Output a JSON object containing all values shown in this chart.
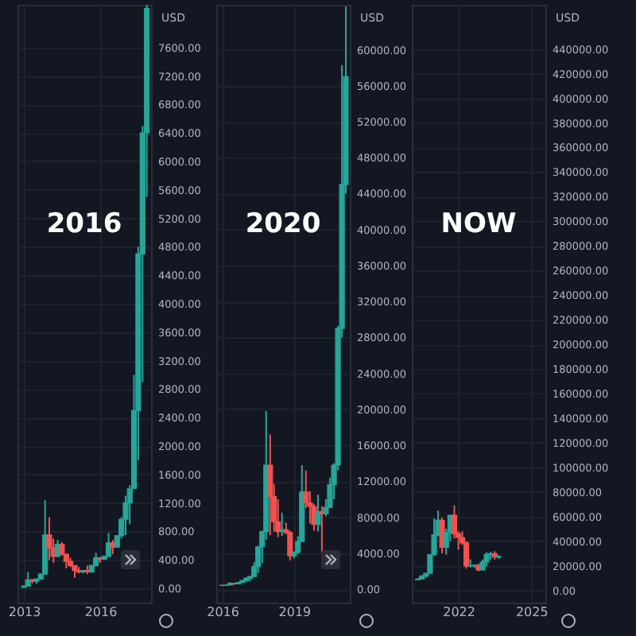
{
  "chart_data": [
    {
      "type": "candlestick",
      "title": "2016",
      "ylabel": "USD",
      "grid": true,
      "x": [
        "2013-01",
        "2013-03",
        "2013-05",
        "2013-07",
        "2013-09",
        "2013-11",
        "2014-01",
        "2014-03",
        "2014-05",
        "2014-07",
        "2014-09",
        "2014-11",
        "2015-01",
        "2015-03",
        "2015-05",
        "2015-07",
        "2015-09",
        "2015-11",
        "2016-01",
        "2016-03",
        "2016-05",
        "2016-07",
        "2016-09",
        "2016-11",
        "2017-01",
        "2017-03",
        "2017-05",
        "2017-07",
        "2017-09",
        "2017-11"
      ],
      "ohlc": [
        [
          13,
          35,
          13,
          33
        ],
        [
          33,
          230,
          30,
          120
        ],
        [
          120,
          130,
          70,
          100
        ],
        [
          100,
          140,
          65,
          130
        ],
        [
          130,
          210,
          120,
          200
        ],
        [
          200,
          1240,
          190,
          750
        ],
        [
          750,
          1000,
          400,
          570
        ],
        [
          570,
          700,
          360,
          450
        ],
        [
          450,
          680,
          440,
          620
        ],
        [
          620,
          650,
          460,
          480
        ],
        [
          480,
          490,
          280,
          380
        ],
        [
          380,
          430,
          300,
          320
        ],
        [
          320,
          320,
          150,
          250
        ],
        [
          250,
          300,
          210,
          230
        ],
        [
          230,
          260,
          210,
          250
        ],
        [
          250,
          320,
          200,
          230
        ],
        [
          230,
          330,
          220,
          320
        ],
        [
          320,
          500,
          310,
          430
        ],
        [
          430,
          440,
          360,
          410
        ],
        [
          410,
          460,
          400,
          450
        ],
        [
          450,
          780,
          440,
          640
        ],
        [
          640,
          680,
          480,
          580
        ],
        [
          580,
          750,
          580,
          740
        ],
        [
          740,
          1000,
          700,
          970
        ],
        [
          970,
          1300,
          750,
          1200
        ],
        [
          1200,
          1450,
          900,
          1400
        ],
        [
          1400,
          3000,
          1400,
          2500
        ],
        [
          2500,
          4800,
          1800,
          4700
        ],
        [
          4700,
          6500,
          2900,
          6400
        ],
        [
          6400,
          8200,
          5500,
          8150
        ]
      ],
      "colors": [
        "#26a69a",
        "#26a69a",
        "#ef5350",
        "#26a69a",
        "#26a69a",
        "#26a69a",
        "#ef5350",
        "#ef5350",
        "#26a69a",
        "#ef5350",
        "#ef5350",
        "#ef5350",
        "#ef5350",
        "#ef5350",
        "#26a69a",
        "#ef5350",
        "#26a69a",
        "#26a69a",
        "#ef5350",
        "#26a69a",
        "#26a69a",
        "#ef5350",
        "#26a69a",
        "#26a69a",
        "#26a69a",
        "#26a69a",
        "#26a69a",
        "#26a69a",
        "#26a69a",
        "#26a69a"
      ],
      "xlim": [
        "2012-10",
        "2018-01"
      ],
      "xticks": [
        "2013",
        "2016"
      ],
      "ylim": [
        -200,
        8200
      ],
      "yticks": [
        {
          "value": 0,
          "label": "0.00"
        },
        {
          "value": 400,
          "label": "400.00"
        },
        {
          "value": 800,
          "label": "800.00"
        },
        {
          "value": 1200,
          "label": "1200.00"
        },
        {
          "value": 1600,
          "label": "1600.00"
        },
        {
          "value": 2000,
          "label": "2000.00"
        },
        {
          "value": 2400,
          "label": "2400.00"
        },
        {
          "value": 2800,
          "label": "2800.00"
        },
        {
          "value": 3200,
          "label": "3200.00"
        },
        {
          "value": 3600,
          "label": "3600.00"
        },
        {
          "value": 4000,
          "label": "4000.00"
        },
        {
          "value": 4400,
          "label": "4400.00"
        },
        {
          "value": 4800,
          "label": "4800.00"
        },
        {
          "value": 5200,
          "label": "5200.00"
        },
        {
          "value": 5600,
          "label": "5600.00"
        },
        {
          "value": 6000,
          "label": "6000.00"
        },
        {
          "value": 6400,
          "label": "6400.00"
        },
        {
          "value": 6800,
          "label": "6800.00"
        },
        {
          "value": 7200,
          "label": "7200.00"
        },
        {
          "value": 7600,
          "label": "7600.00"
        }
      ]
    },
    {
      "type": "candlestick",
      "title": "2020",
      "ylabel": "USD",
      "grid": true,
      "x": [
        "2016-01",
        "2016-03",
        "2016-05",
        "2016-07",
        "2016-09",
        "2016-11",
        "2017-01",
        "2017-03",
        "2017-05",
        "2017-07",
        "2017-09",
        "2017-11",
        "2018-01",
        "2018-03",
        "2018-05",
        "2018-07",
        "2018-09",
        "2018-11",
        "2019-01",
        "2019-03",
        "2019-05",
        "2019-07",
        "2019-09",
        "2019-11",
        "2020-01",
        "2020-03",
        "2020-05",
        "2020-07",
        "2020-09",
        "2020-11",
        "2021-01",
        "2021-03"
      ],
      "ohlc": [
        [
          430,
          440,
          360,
          410
        ],
        [
          410,
          460,
          400,
          450
        ],
        [
          450,
          780,
          440,
          640
        ],
        [
          640,
          680,
          480,
          580
        ],
        [
          580,
          750,
          580,
          740
        ],
        [
          740,
          1000,
          700,
          970
        ],
        [
          970,
          1300,
          750,
          1200
        ],
        [
          1200,
          1450,
          900,
          1400
        ],
        [
          1400,
          3000,
          1400,
          2500
        ],
        [
          2500,
          4800,
          1800,
          4700
        ],
        [
          4700,
          6500,
          2900,
          6400
        ],
        [
          6400,
          19800,
          5500,
          13800
        ],
        [
          13800,
          17200,
          6000,
          10300
        ],
        [
          10300,
          11700,
          6400,
          7500
        ],
        [
          7500,
          10000,
          5800,
          6400
        ],
        [
          6400,
          8500,
          5900,
          6600
        ],
        [
          6600,
          7400,
          6100,
          6300
        ],
        [
          6300,
          6500,
          3200,
          3700
        ],
        [
          3700,
          4200,
          3400,
          4100
        ],
        [
          4100,
          5900,
          3900,
          5300
        ],
        [
          5300,
          13800,
          5300,
          10800
        ],
        [
          10800,
          13200,
          9000,
          9600
        ],
        [
          9600,
          10900,
          7300,
          9200
        ],
        [
          9200,
          9500,
          6500,
          7200
        ],
        [
          7200,
          10500,
          6400,
          8600
        ],
        [
          8600,
          9200,
          3800,
          8400
        ],
        [
          8400,
          10000,
          8100,
          9100
        ],
        [
          9100,
          12400,
          9000,
          11600
        ],
        [
          11600,
          14000,
          10000,
          13800
        ],
        [
          13800,
          29300,
          13200,
          29000
        ],
        [
          29000,
          58300,
          28000,
          45000
        ],
        [
          45000,
          64800,
          44000,
          57000
        ]
      ],
      "colors": [
        "#ef5350",
        "#26a69a",
        "#26a69a",
        "#ef5350",
        "#26a69a",
        "#26a69a",
        "#26a69a",
        "#26a69a",
        "#26a69a",
        "#26a69a",
        "#26a69a",
        "#26a69a",
        "#ef5350",
        "#ef5350",
        "#ef5350",
        "#26a69a",
        "#ef5350",
        "#ef5350",
        "#26a69a",
        "#26a69a",
        "#26a69a",
        "#ef5350",
        "#ef5350",
        "#ef5350",
        "#26a69a",
        "#ef5350",
        "#26a69a",
        "#26a69a",
        "#26a69a",
        "#26a69a",
        "#26a69a",
        "#26a69a"
      ],
      "xlim": [
        "2015-10",
        "2021-05"
      ],
      "xticks": [
        "2016",
        "2019"
      ],
      "ylim": [
        -1500,
        65000
      ],
      "yticks": [
        {
          "value": 0,
          "label": "0.00"
        },
        {
          "value": 4000,
          "label": "4000.00"
        },
        {
          "value": 8000,
          "label": "8000.00"
        },
        {
          "value": 12000,
          "label": "12000.00"
        },
        {
          "value": 16000,
          "label": "16000.00"
        },
        {
          "value": 20000,
          "label": "20000.00"
        },
        {
          "value": 24000,
          "label": "24000.00"
        },
        {
          "value": 28000,
          "label": "28000.00"
        },
        {
          "value": 32000,
          "label": "32000.00"
        },
        {
          "value": 36000,
          "label": "36000.00"
        },
        {
          "value": 40000,
          "label": "40000.00"
        },
        {
          "value": 44000,
          "label": "44000.00"
        },
        {
          "value": 48000,
          "label": "48000.00"
        },
        {
          "value": 52000,
          "label": "52000.00"
        },
        {
          "value": 56000,
          "label": "56000.00"
        },
        {
          "value": 60000,
          "label": "60000.00"
        }
      ]
    },
    {
      "type": "candlestick",
      "title": "NOW",
      "ylabel": "USD",
      "grid": true,
      "x": [
        "2020-05",
        "2020-07",
        "2020-09",
        "2020-11",
        "2021-01",
        "2021-03",
        "2021-05",
        "2021-07",
        "2021-09",
        "2021-11",
        "2022-01",
        "2022-03",
        "2022-05",
        "2022-07",
        "2022-09",
        "2022-11",
        "2023-01",
        "2023-03",
        "2023-05",
        "2023-07",
        "2023-09"
      ],
      "ohlc": [
        [
          8600,
          10000,
          8100,
          9100
        ],
        [
          9100,
          12400,
          9000,
          11600
        ],
        [
          11600,
          14000,
          10000,
          13800
        ],
        [
          13800,
          29300,
          13200,
          29000
        ],
        [
          29000,
          58300,
          28000,
          45000
        ],
        [
          45000,
          64800,
          44000,
          57000
        ],
        [
          57000,
          59000,
          30000,
          35000
        ],
        [
          35000,
          50000,
          29000,
          47000
        ],
        [
          47000,
          61000,
          40000,
          61000
        ],
        [
          61000,
          69000,
          42000,
          46000
        ],
        [
          46000,
          48000,
          33000,
          43000
        ],
        [
          43000,
          48000,
          37000,
          38500
        ],
        [
          38500,
          40000,
          17600,
          19800
        ],
        [
          19800,
          25200,
          18500,
          20000
        ],
        [
          20000,
          21000,
          18200,
          20500
        ],
        [
          20500,
          21500,
          15500,
          16500
        ],
        [
          16500,
          25000,
          16500,
          23100
        ],
        [
          23100,
          31000,
          19500,
          29200
        ],
        [
          29200,
          31400,
          24800,
          29800
        ],
        [
          29800,
          31800,
          25000,
          27000
        ],
        [
          27000,
          28500,
          25500,
          27500
        ]
      ],
      "colors": [
        "#26a69a",
        "#26a69a",
        "#26a69a",
        "#26a69a",
        "#26a69a",
        "#26a69a",
        "#ef5350",
        "#26a69a",
        "#26a69a",
        "#ef5350",
        "#ef5350",
        "#ef5350",
        "#ef5350",
        "#26a69a",
        "#26a69a",
        "#ef5350",
        "#26a69a",
        "#26a69a",
        "#26a69a",
        "#ef5350",
        "#26a69a"
      ],
      "xlim": [
        "2020-02",
        "2025-08"
      ],
      "xticks": [
        "2022",
        "2025"
      ],
      "ylim": [
        -10000,
        476000
      ],
      "yticks": [
        {
          "value": 0,
          "label": "0.00"
        },
        {
          "value": 20000,
          "label": "20000.00"
        },
        {
          "value": 40000,
          "label": "40000.00"
        },
        {
          "value": 60000,
          "label": "60000.00"
        },
        {
          "value": 80000,
          "label": "80000.00"
        },
        {
          "value": 100000,
          "label": "100000.00"
        },
        {
          "value": 120000,
          "label": "120000.00"
        },
        {
          "value": 140000,
          "label": "140000.00"
        },
        {
          "value": 160000,
          "label": "160000.00"
        },
        {
          "value": 180000,
          "label": "180000.00"
        },
        {
          "value": 200000,
          "label": "200000.00"
        },
        {
          "value": 220000,
          "label": "220000.00"
        },
        {
          "value": 240000,
          "label": "240000.00"
        },
        {
          "value": 260000,
          "label": "260000.00"
        },
        {
          "value": 280000,
          "label": "280000.00"
        },
        {
          "value": 300000,
          "label": "300000.00"
        },
        {
          "value": 320000,
          "label": "320000.00"
        },
        {
          "value": 340000,
          "label": "340000.00"
        },
        {
          "value": 360000,
          "label": "360000.00"
        },
        {
          "value": 380000,
          "label": "380000.00"
        },
        {
          "value": 400000,
          "label": "400000.00"
        },
        {
          "value": 420000,
          "label": "420000.00"
        },
        {
          "value": 440000,
          "label": "440000.00"
        }
      ]
    }
  ]
}
